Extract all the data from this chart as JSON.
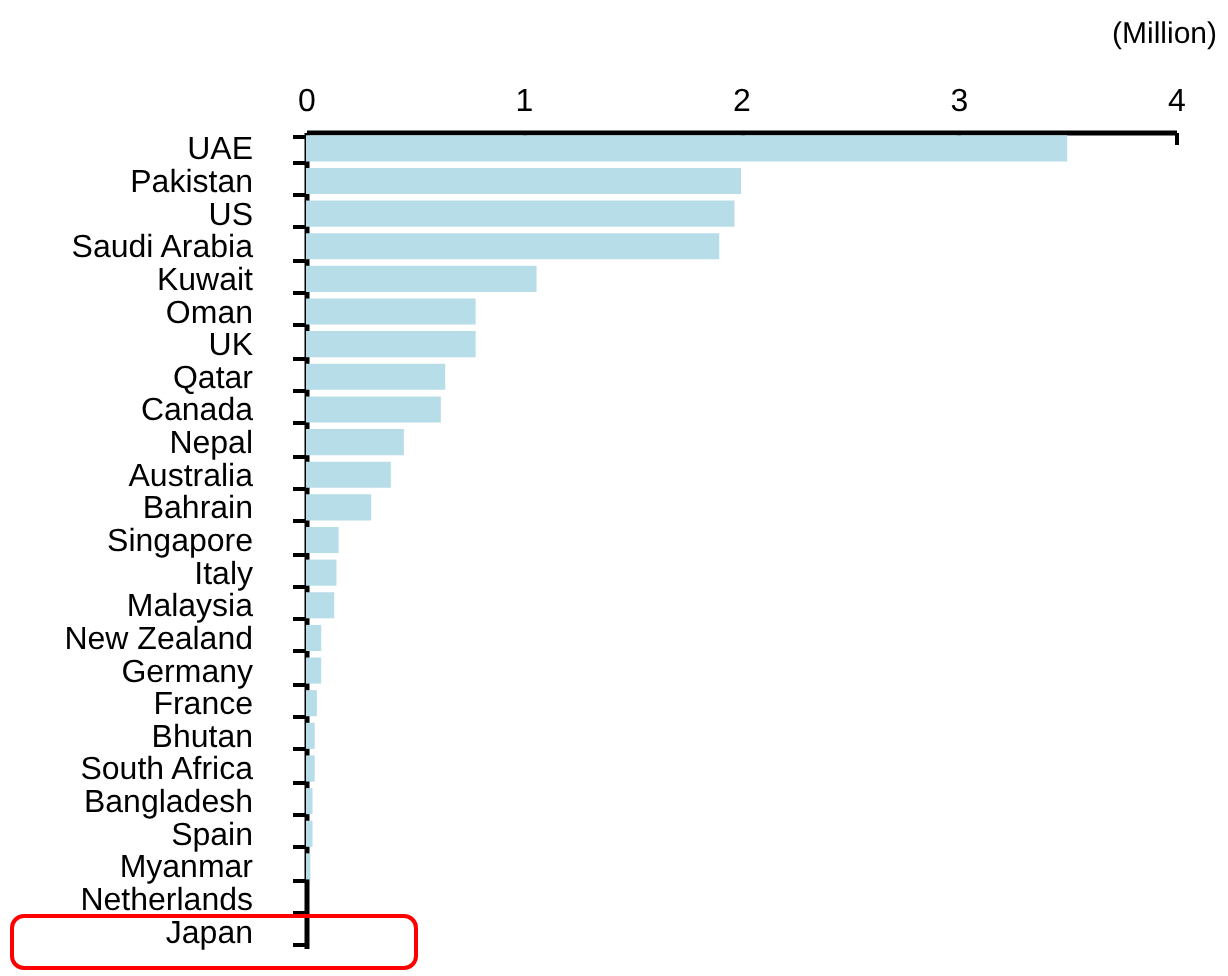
{
  "chart_data": {
    "type": "bar",
    "orientation": "horizontal",
    "xlabel": "(Million)",
    "categories": [
      "UAE",
      "Pakistan",
      "US",
      "Saudi Arabia",
      "Kuwait",
      "Oman",
      "UK",
      "Qatar",
      "Canada",
      "Nepal",
      "Australia",
      "Bahrain",
      "Singapore",
      "Italy",
      "Malaysia",
      "New Zealand",
      "Germany",
      "France",
      "Bhutan",
      "South Africa",
      "Bangladesh",
      "Spain",
      "Myanmar",
      "Netherlands",
      "Japan"
    ],
    "values": [
      3.5,
      2.0,
      1.97,
      1.9,
      1.06,
      0.78,
      0.78,
      0.64,
      0.62,
      0.45,
      0.39,
      0.3,
      0.15,
      0.14,
      0.13,
      0.07,
      0.07,
      0.05,
      0.04,
      0.04,
      0.03,
      0.03,
      0.02,
      null,
      null
    ],
    "color": "#b7dde8",
    "xlim": [
      0,
      4
    ],
    "xticks": [
      0,
      1,
      2,
      3,
      4
    ]
  }
}
